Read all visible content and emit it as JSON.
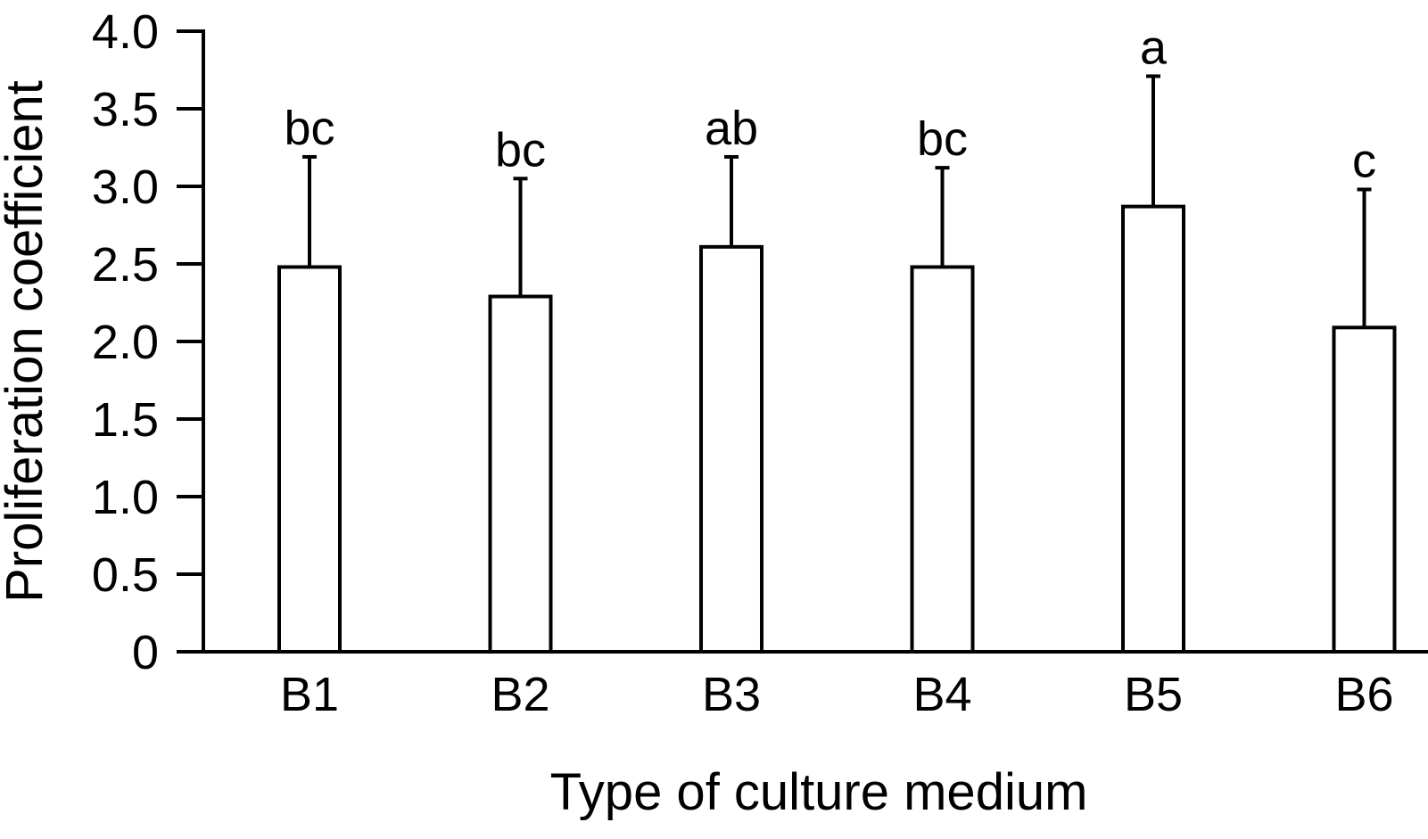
{
  "chart_data": {
    "type": "bar",
    "title": "",
    "xlabel": "Type of culture medium",
    "ylabel": "Proliferation coefficient",
    "ylim": [
      0,
      4.0
    ],
    "yticks": [
      0,
      0.5,
      1.0,
      1.5,
      2.0,
      2.5,
      3.0,
      3.5,
      4.0
    ],
    "ytick_labels": [
      "0",
      "0.5",
      "1.0",
      "1.5",
      "2.0",
      "2.5",
      "3.0",
      "3.5",
      "4.0"
    ],
    "categories": [
      "B1",
      "B2",
      "B3",
      "B4",
      "B5",
      "B6"
    ],
    "values": [
      2.48,
      2.29,
      2.61,
      2.48,
      2.87,
      2.09
    ],
    "error_upper": [
      0.71,
      0.76,
      0.58,
      0.64,
      0.84,
      0.89
    ],
    "significance_labels": [
      "bc",
      "bc",
      "ab",
      "bc",
      "a",
      "c"
    ],
    "grid": false,
    "legend": "none",
    "bar_fill": "#ffffff",
    "bar_stroke": "#000000"
  }
}
